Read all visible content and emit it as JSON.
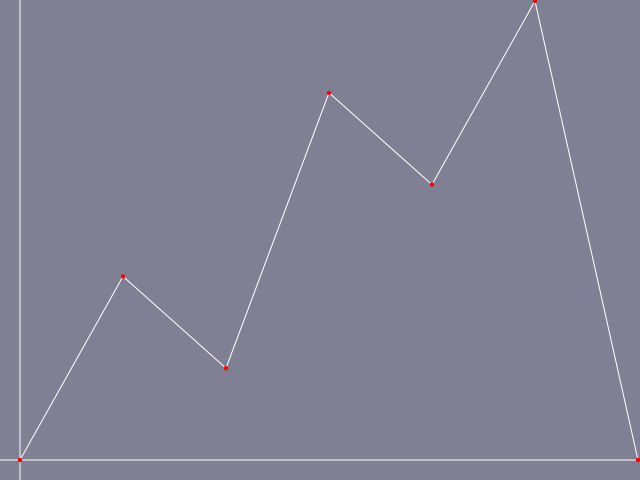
{
  "chart_data": {
    "type": "line",
    "x": [
      0,
      1,
      2,
      3,
      4,
      5,
      6
    ],
    "values": [
      0,
      2,
      1,
      4,
      3,
      5,
      0
    ],
    "xlim": [
      0,
      6
    ],
    "ylim": [
      0,
      5
    ],
    "grid": false,
    "title": "",
    "xlabel": "",
    "ylabel": ""
  },
  "colors": {
    "background": "#808095",
    "axis": "#ffffff",
    "line": "#ffffff",
    "marker": "#ff0000"
  }
}
